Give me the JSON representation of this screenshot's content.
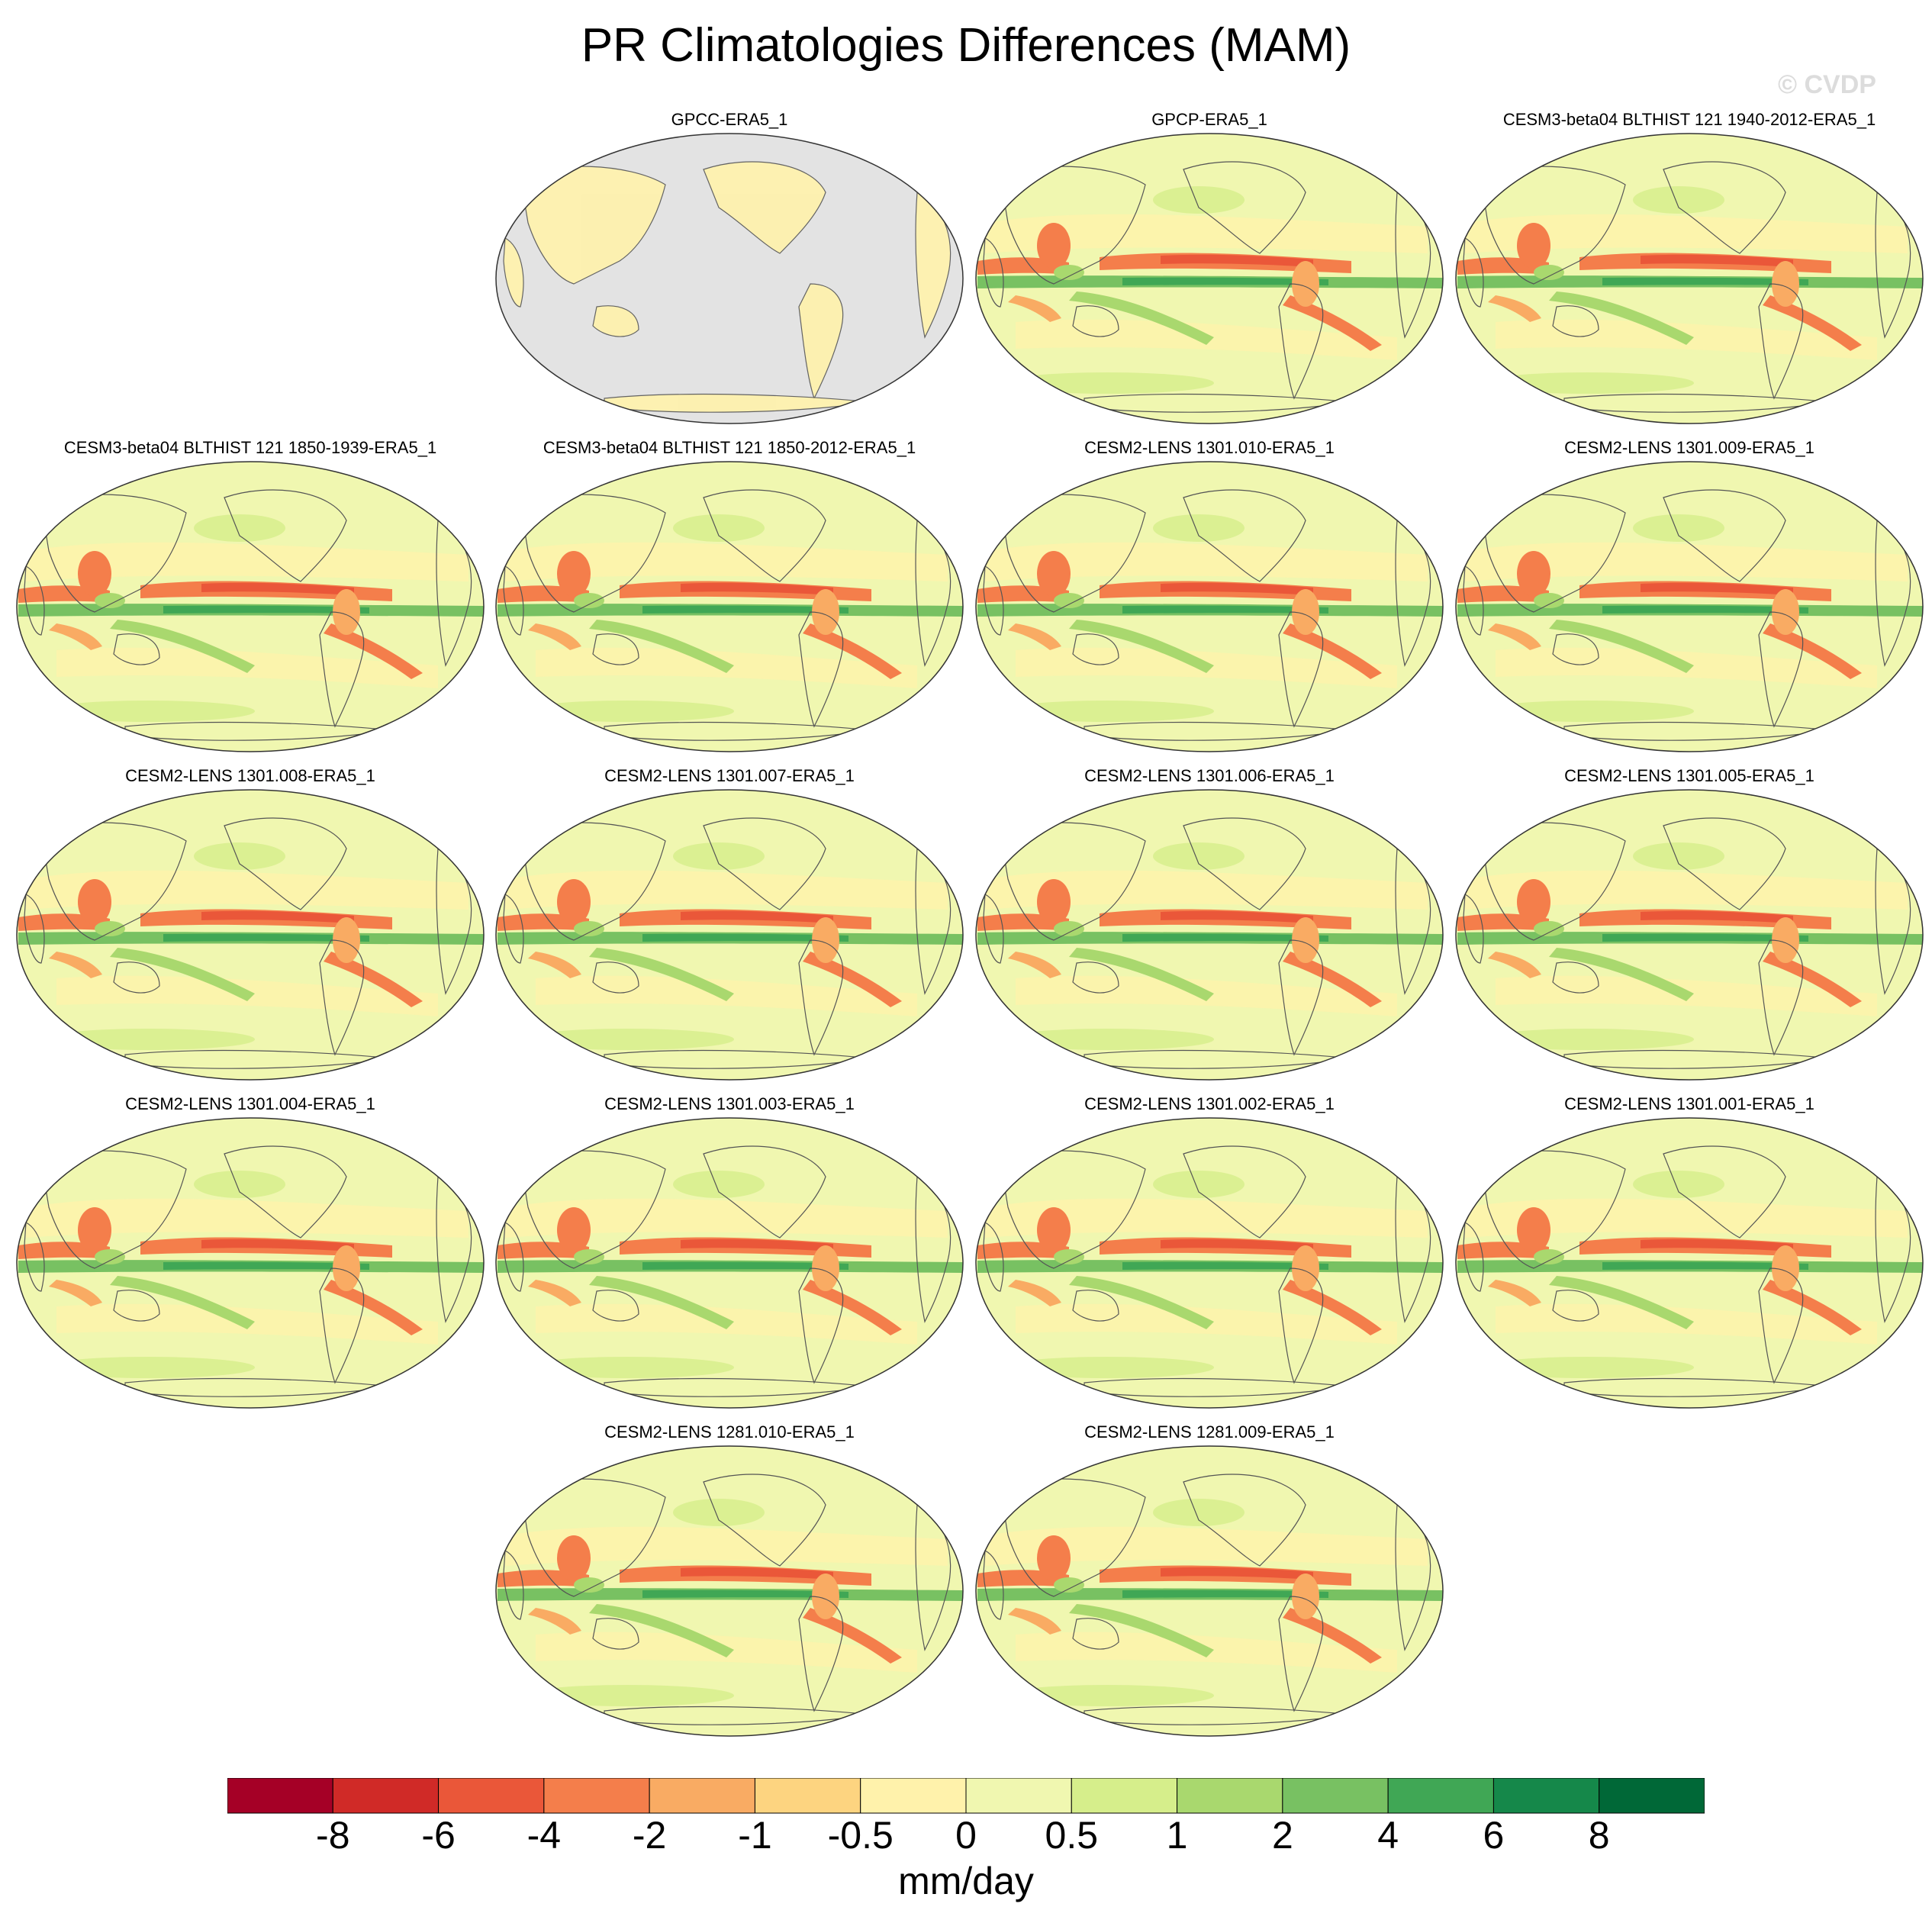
{
  "title": "PR Climatologies Differences (MAM)",
  "watermark": "© CVDP",
  "panels": [
    {
      "label": "GPCC-ERA5_1",
      "ocean_masked": true
    },
    {
      "label": "GPCP-ERA5_1"
    },
    {
      "label": "CESM3-beta04 BLTHIST 121 1940-2012-ERA5_1"
    },
    {
      "label": "CESM3-beta04 BLTHIST 121 1850-1939-ERA5_1"
    },
    {
      "label": "CESM3-beta04 BLTHIST 121 1850-2012-ERA5_1"
    },
    {
      "label": "CESM2-LENS 1301.010-ERA5_1"
    },
    {
      "label": "CESM2-LENS 1301.009-ERA5_1"
    },
    {
      "label": "CESM2-LENS 1301.008-ERA5_1"
    },
    {
      "label": "CESM2-LENS 1301.007-ERA5_1"
    },
    {
      "label": "CESM2-LENS 1301.006-ERA5_1"
    },
    {
      "label": "CESM2-LENS 1301.005-ERA5_1"
    },
    {
      "label": "CESM2-LENS 1301.004-ERA5_1"
    },
    {
      "label": "CESM2-LENS 1301.003-ERA5_1"
    },
    {
      "label": "CESM2-LENS 1301.002-ERA5_1"
    },
    {
      "label": "CESM2-LENS 1301.001-ERA5_1"
    },
    {
      "label": "CESM2-LENS 1281.010-ERA5_1"
    },
    {
      "label": "CESM2-LENS 1281.009-ERA5_1"
    }
  ],
  "colorbar": {
    "tick_labels": [
      "-8",
      "-6",
      "-4",
      "-2",
      "-1",
      "-0.5",
      "0",
      "0.5",
      "1",
      "2",
      "4",
      "6",
      "8"
    ],
    "colors": [
      "#a50026",
      "#d02a27",
      "#ea5739",
      "#f47e4b",
      "#f9ab63",
      "#fdd480",
      "#fff2ab",
      "#f0f7b0",
      "#d6ee8b",
      "#a9d86e",
      "#78c162",
      "#40a755",
      "#15884a",
      "#006837"
    ],
    "units": "mm/day"
  },
  "colors": {
    "masked": "#e3e3e3",
    "coast": "#555555"
  }
}
